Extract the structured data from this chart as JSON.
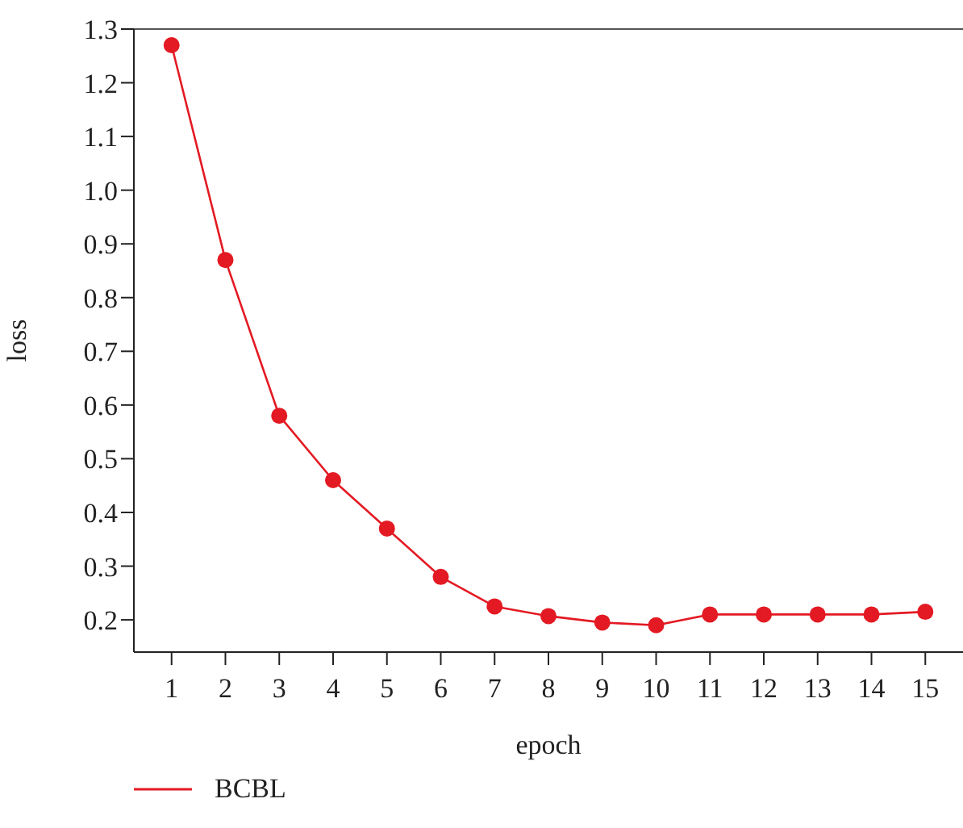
{
  "chart_data": {
    "type": "line",
    "xlabel": "epoch",
    "ylabel": "loss",
    "x": [
      1,
      2,
      3,
      4,
      5,
      6,
      7,
      8,
      9,
      10,
      11,
      12,
      13,
      14,
      15
    ],
    "series": [
      {
        "name": "BCBL",
        "color": "#e31a23",
        "values": [
          1.27,
          0.87,
          0.58,
          0.46,
          0.37,
          0.28,
          0.225,
          0.207,
          0.195,
          0.19,
          0.21,
          0.21,
          0.21,
          0.21,
          0.215
        ]
      }
    ],
    "xlim": [
      0.3,
      15.7
    ],
    "xticks": [
      1,
      2,
      3,
      4,
      5,
      6,
      7,
      8,
      9,
      10,
      11,
      12,
      13,
      14,
      15
    ],
    "ylim": [
      0.14,
      1.3
    ],
    "yticks": [
      0.2,
      0.3,
      0.4,
      0.5,
      0.6,
      0.7,
      0.8,
      0.9,
      {
        "value": 1,
        "label": "1.0"
      },
      1.1,
      1.2,
      1.3
    ],
    "grid": false,
    "legend": "bottom left",
    "marker": "circle",
    "line_style": "solid"
  }
}
